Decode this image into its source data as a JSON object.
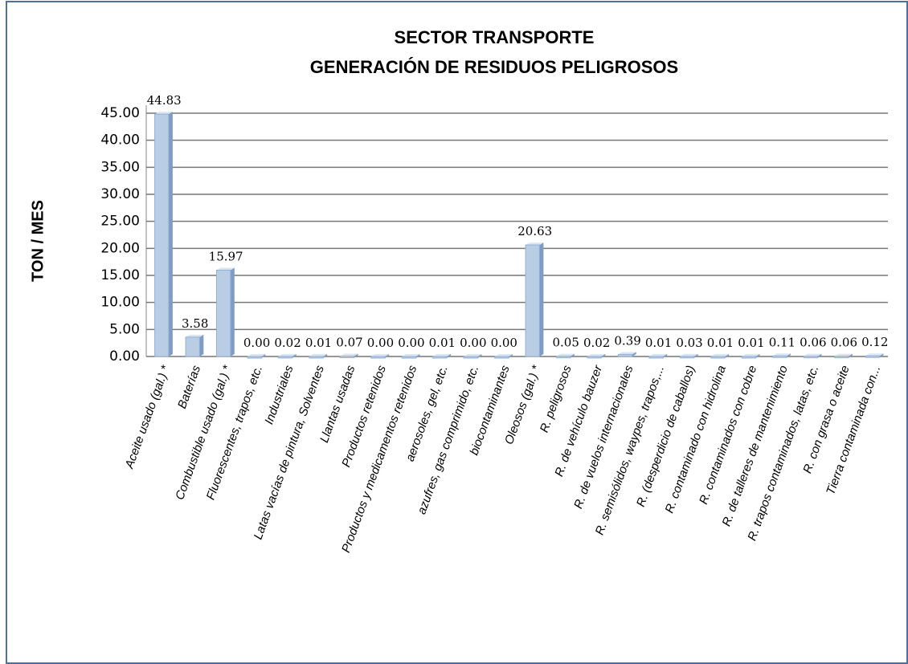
{
  "chart_data": {
    "type": "bar",
    "title": "SECTOR TRANSPORTE",
    "subtitle": "GENERACIÓN DE RESIDUOS PELIGROSOS",
    "y_label": "TON / MES",
    "color": "#b9cde5",
    "categories": [
      "Aceite usado (gal.) *",
      "Baterías",
      "Combustible usado (gal.) *",
      "Fluorescentes, trapos, etc.",
      "Industriales",
      "Latas vacías de pintura, Solventes",
      "Llantas usadas",
      "Productos retenidos",
      "Productos y medicamentos retenidos",
      "aerosoles, gel, etc.",
      "azufres, gas comprimido, etc.",
      "biocontaminantes",
      "Oleosos (gal.) *",
      "R. peligrosos",
      "R. de vehículo bauzer",
      "R. de vuelos internacionales",
      "R. semisólidos, waypes, trapos,...",
      "R. (desperdicio de caballos)",
      "R. contaminado con hidrolina",
      "R. contaminados con cobre",
      "R. de talleres de mantenimiento",
      "R. trapos contaminados, latas, etc.",
      "R. con grasa o aceite",
      "Tierra contaminada con..."
    ],
    "values": [
      44.83,
      3.58,
      15.97,
      0,
      0.02,
      0.01,
      0.07,
      0,
      0,
      0.01,
      0,
      0,
      20.63,
      0.05,
      0.02,
      0.39,
      0.01,
      0.03,
      0.01,
      0.01,
      0.11,
      0.06,
      0.06,
      0.12
    ],
    "value_labels": [
      "44.83",
      "3.58",
      "15.97",
      "0.00",
      "0.02",
      "0.01",
      "0.07",
      "0.00",
      "0.00",
      "0.01",
      "0.00",
      "0.00",
      "20.63",
      "0.05",
      "0.02",
      "0.39",
      "0.01",
      "0.03",
      "0.01",
      "0.01",
      "0.11",
      "0.06",
      "0.06",
      "0.12"
    ],
    "ylim": [
      0,
      45
    ],
    "yticks": [
      {
        "value": 0,
        "label": "0.00"
      },
      {
        "value": 5,
        "label": "5.00"
      },
      {
        "value": 10,
        "label": "10.00"
      },
      {
        "value": 15,
        "label": "15.00"
      },
      {
        "value": 20,
        "label": "20.00"
      },
      {
        "value": 25,
        "label": "25.00"
      },
      {
        "value": 30,
        "label": "30.00"
      },
      {
        "value": 35,
        "label": "35.00"
      },
      {
        "value": 40,
        "label": "40.00"
      },
      {
        "value": 45,
        "label": "45.00"
      }
    ],
    "grid": true
  }
}
